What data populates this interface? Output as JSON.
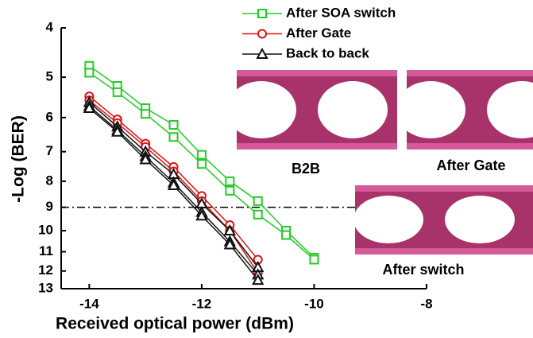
{
  "chart_data": {
    "type": "line",
    "x_label": "Received optical power (dBm)",
    "y_label": "-Log (BER)",
    "xlim": [
      -14.5,
      -8
    ],
    "xticks": [
      -14,
      -12,
      -10,
      -8
    ],
    "ylim": [
      4,
      13
    ],
    "yticks": [
      4,
      5,
      6,
      7,
      8,
      9,
      10,
      11,
      12,
      13
    ],
    "y_scale": "log",
    "y_inverted": true,
    "threshold": 9,
    "legend": "top",
    "series": [
      {
        "name": "After SOA switch",
        "color": "#22cc22",
        "marker": "square",
        "curves": [
          {
            "x": [
              -14,
              -13.5,
              -13,
              -12.5,
              -12,
              -11.5,
              -11,
              -10.5,
              -10
            ],
            "values": [
              4.75,
              5.2,
              5.75,
              6.2,
              7.1,
              8.0,
              8.75,
              10.0,
              11.3
            ]
          },
          {
            "x": [
              -14,
              -13.5,
              -13,
              -12.5,
              -12,
              -11.5,
              -11,
              -10.5,
              -10
            ],
            "values": [
              4.9,
              5.35,
              5.9,
              6.55,
              7.4,
              8.35,
              9.3,
              10.2,
              11.4
            ]
          }
        ]
      },
      {
        "name": "After Gate",
        "color": "#dd1111",
        "marker": "circle",
        "curves": [
          {
            "x": [
              -14,
              -13.5,
              -13,
              -12.5,
              -12,
              -11.5,
              -11
            ],
            "values": [
              5.45,
              6.05,
              6.75,
              7.5,
              8.55,
              9.75,
              11.4
            ]
          },
          {
            "x": [
              -14,
              -13.5,
              -13,
              -12.5,
              -12,
              -11.5,
              -11
            ],
            "values": [
              5.55,
              6.15,
              6.85,
              7.65,
              8.75,
              10.0,
              12.1
            ]
          }
        ]
      },
      {
        "name": "Back to back",
        "color": "#111111",
        "marker": "triangle",
        "curves": [
          {
            "x": [
              -14,
              -13.5,
              -13,
              -12.5,
              -12,
              -11.5,
              -11
            ],
            "values": [
              5.6,
              6.25,
              7.0,
              7.75,
              8.85,
              10.0,
              11.8
            ]
          },
          {
            "x": [
              -14,
              -13.5,
              -13,
              -12.5,
              -12,
              -11.5,
              -11
            ],
            "values": [
              5.7,
              6.35,
              7.15,
              8.05,
              9.2,
              10.5,
              12.2
            ]
          },
          {
            "x": [
              -14,
              -13.5,
              -13,
              -12.5,
              -12,
              -11.5,
              -11
            ],
            "values": [
              5.75,
              6.4,
              7.25,
              8.15,
              9.35,
              10.65,
              12.5
            ]
          }
        ]
      }
    ],
    "insets": [
      "B2B",
      "After Gate",
      "After switch"
    ]
  }
}
